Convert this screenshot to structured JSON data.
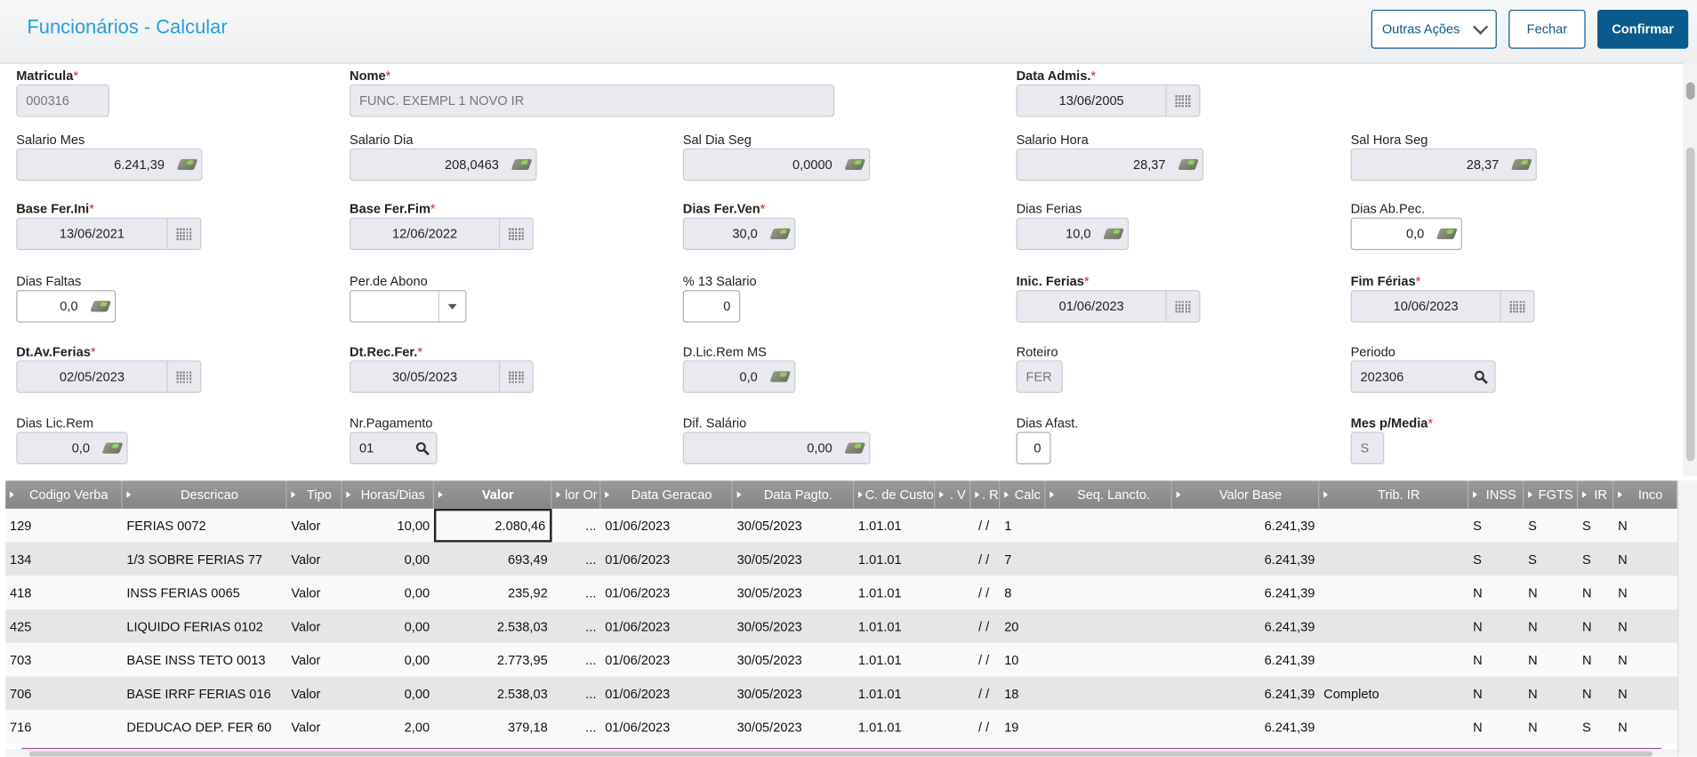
{
  "header": {
    "title": "Funcionários - Calcular",
    "other_actions": "Outras Ações",
    "close": "Fechar",
    "confirm": "Confirmar"
  },
  "fields": [
    {
      "label": "Matricula",
      "required": true,
      "value": "000316",
      "type": "readonly"
    },
    {
      "label": "Nome",
      "required": true,
      "value": "FUNC. EXEMPL 1 NOVO IR",
      "type": "readonly"
    },
    {
      "label": "Data Admis.",
      "required": true,
      "value": "13/06/2005",
      "type": "date"
    },
    {
      "label": "Salario Mes",
      "required": false,
      "value": "6.241,39",
      "type": "money"
    },
    {
      "label": "Salario Dia",
      "required": false,
      "value": "208,0463",
      "type": "money"
    },
    {
      "label": "Sal Dia Seg",
      "required": false,
      "value": "0,0000",
      "type": "money"
    },
    {
      "label": "Salario Hora",
      "required": false,
      "value": "28,37",
      "type": "money"
    },
    {
      "label": "Sal Hora Seg",
      "required": false,
      "value": "28,37",
      "type": "money"
    },
    {
      "label": "Base Fer.Ini",
      "required": true,
      "value": "13/06/2021",
      "type": "date"
    },
    {
      "label": "Base Fer.Fim",
      "required": true,
      "value": "12/06/2022",
      "type": "date"
    },
    {
      "label": "Dias Fer.Ven",
      "required": true,
      "value": "30,0",
      "type": "money"
    },
    {
      "label": "Dias Ferias",
      "required": false,
      "value": "10,0",
      "type": "money"
    },
    {
      "label": "Dias Ab.Pec.",
      "required": false,
      "value": "0,0",
      "type": "money-edit"
    },
    {
      "label": "Dias Faltas",
      "required": false,
      "value": "0,0",
      "type": "money-edit"
    },
    {
      "label": "Per.de Abono",
      "required": false,
      "value": "",
      "type": "select"
    },
    {
      "label": "% 13 Salario",
      "required": false,
      "value": "0",
      "type": "edit"
    },
    {
      "label": "Inic. Ferias",
      "required": true,
      "value": "01/06/2023",
      "type": "date"
    },
    {
      "label": "Fim Férias",
      "required": true,
      "value": "10/06/2023",
      "type": "date"
    },
    {
      "label": "Dt.Av.Ferias",
      "required": true,
      "value": "02/05/2023",
      "type": "date"
    },
    {
      "label": "Dt.Rec.Fer.",
      "required": true,
      "value": "30/05/2023",
      "type": "date"
    },
    {
      "label": "D.Lic.Rem MS",
      "required": false,
      "value": "0,0",
      "type": "money"
    },
    {
      "label": "Roteiro",
      "required": false,
      "value": "FER",
      "type": "readonly"
    },
    {
      "label": "Periodo",
      "required": false,
      "value": "202306",
      "type": "search"
    },
    {
      "label": "Dias Lic.Rem",
      "required": false,
      "value": "0,0",
      "type": "money"
    },
    {
      "label": "Nr.Pagamento",
      "required": false,
      "value": "01",
      "type": "search"
    },
    {
      "label": "Dif. Salário",
      "required": false,
      "value": "0,00",
      "type": "money"
    },
    {
      "label": "Dias Afast.",
      "required": false,
      "value": "0",
      "type": "edit"
    },
    {
      "label": "Mes p/Media",
      "required": true,
      "value": "S",
      "type": "readonly"
    }
  ],
  "grid": {
    "columns": [
      "Codigo Verba",
      "Descricao",
      "Tipo",
      "Horas/Dias",
      "Valor",
      "lor Or",
      "Data Geracao",
      "Data Pagto.",
      "C. de Custo",
      ". V",
      ". R",
      "Calc",
      "Seq. Lancto.",
      "Valor Base",
      "Trib. IR",
      "INSS",
      "FGTS",
      "IR",
      "Inco"
    ],
    "rows": [
      [
        "129",
        "FERIAS 0072",
        "Valor",
        "10,00",
        "2.080,46",
        "...",
        "01/06/2023",
        "30/05/2023",
        "1.01.01",
        "",
        "/ /",
        "1",
        "",
        "6.241,39",
        "",
        "S",
        "S",
        "S",
        "N"
      ],
      [
        "134",
        "1/3 SOBRE FERIAS 77",
        "Valor",
        "0,00",
        "693,49",
        "...",
        "01/06/2023",
        "30/05/2023",
        "1.01.01",
        "",
        "/ /",
        "7",
        "",
        "6.241,39",
        "",
        "S",
        "S",
        "S",
        "N"
      ],
      [
        "418",
        "INSS FERIAS 0065",
        "Valor",
        "0,00",
        "235,92",
        "...",
        "01/06/2023",
        "30/05/2023",
        "1.01.01",
        "",
        "/ /",
        "8",
        "",
        "6.241,39",
        "",
        "N",
        "N",
        "N",
        "N"
      ],
      [
        "425",
        "LIQUIDO FERIAS 0102",
        "Valor",
        "0,00",
        "2.538,03",
        "...",
        "01/06/2023",
        "30/05/2023",
        "1.01.01",
        "",
        "/ /",
        "20",
        "",
        "6.241,39",
        "",
        "N",
        "N",
        "N",
        "N"
      ],
      [
        "703",
        "BASE INSS TETO 0013",
        "Valor",
        "0,00",
        "2.773,95",
        "...",
        "01/06/2023",
        "30/05/2023",
        "1.01.01",
        "",
        "/ /",
        "10",
        "",
        "6.241,39",
        "",
        "N",
        "N",
        "N",
        "N"
      ],
      [
        "706",
        "BASE IRRF FERIAS 016",
        "Valor",
        "0,00",
        "2.538,03",
        "...",
        "01/06/2023",
        "30/05/2023",
        "1.01.01",
        "",
        "/ /",
        "18",
        "",
        "6.241,39",
        "Completo",
        "N",
        "N",
        "N",
        "N"
      ],
      [
        "716",
        "DEDUCAO DEP. FER 60",
        "Valor",
        "2,00",
        "379,18",
        "...",
        "01/06/2023",
        "30/05/2023",
        "1.01.01",
        "",
        "/ /",
        "19",
        "",
        "6.241,39",
        "",
        "N",
        "N",
        "S",
        "N"
      ]
    ]
  },
  "colors": {
    "title": "#2a9fd6",
    "primary": "#0b5a8e",
    "required": "#e02020",
    "grid_header": "#8c8c8c"
  }
}
